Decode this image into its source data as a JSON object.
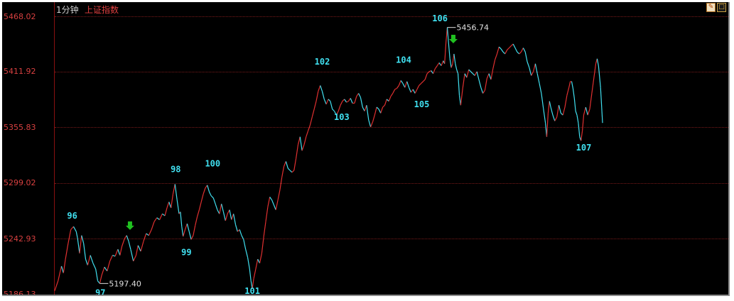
{
  "header": {
    "period": "1分钟",
    "index_name": "上证指数",
    "tools": [
      {
        "icon": "tool-icon",
        "glyph": "✎"
      },
      {
        "icon": "minimize-icon",
        "glyph": "□"
      }
    ]
  },
  "colors": {
    "up_line": "#e03030",
    "down_line": "#40e0f0",
    "axis_text": "#d84040",
    "wave_label": "#40e0f0",
    "arrow": "#20c020"
  },
  "y_axis": {
    "ticks": [
      "5468.02",
      "5411.92",
      "5355.83",
      "5299.02",
      "5242.93",
      "5186.13"
    ]
  },
  "chart_data": {
    "type": "line",
    "y_range": [
      5186.13,
      5468.02
    ],
    "x_range": [
      0,
      1000
    ],
    "series": [
      {
        "points": [
          [
            0,
            5190
          ],
          [
            5,
            5200
          ],
          [
            10,
            5215
          ],
          [
            13,
            5208
          ],
          [
            16,
            5222
          ],
          [
            20,
            5238
          ],
          [
            24,
            5252
          ],
          [
            28,
            5255
          ],
          [
            32,
            5250
          ],
          [
            34,
            5243
          ],
          [
            37,
            5228
          ],
          [
            40,
            5246
          ],
          [
            43,
            5238
          ],
          [
            46,
            5222
          ],
          [
            49,
            5216
          ],
          [
            53,
            5226
          ],
          [
            57,
            5218
          ],
          [
            61,
            5212
          ],
          [
            64,
            5200
          ],
          [
            67,
            5197.4
          ],
          [
            70,
            5206
          ],
          [
            74,
            5214
          ],
          [
            78,
            5210
          ],
          [
            82,
            5220
          ],
          [
            86,
            5226
          ],
          [
            90,
            5225
          ],
          [
            94,
            5232
          ],
          [
            97,
            5226
          ],
          [
            100,
            5235
          ],
          [
            104,
            5243
          ],
          [
            107,
            5246
          ],
          [
            110,
            5240
          ],
          [
            113,
            5232
          ],
          [
            117,
            5220
          ],
          [
            121,
            5226
          ],
          [
            124,
            5236
          ],
          [
            128,
            5230
          ],
          [
            132,
            5240
          ],
          [
            136,
            5248
          ],
          [
            140,
            5246
          ],
          [
            144,
            5252
          ],
          [
            148,
            5260
          ],
          [
            152,
            5264
          ],
          [
            156,
            5262
          ],
          [
            160,
            5268
          ],
          [
            164,
            5266
          ],
          [
            167,
            5274
          ],
          [
            170,
            5280
          ],
          [
            173,
            5274
          ],
          [
            176,
            5288
          ],
          [
            179,
            5298
          ],
          [
            182,
            5282
          ],
          [
            185,
            5268
          ],
          [
            187,
            5270
          ],
          [
            189,
            5255
          ],
          [
            191,
            5245
          ],
          [
            194,
            5252
          ],
          [
            197,
            5258
          ],
          [
            200,
            5250
          ],
          [
            203,
            5242
          ],
          [
            206,
            5246
          ],
          [
            209,
            5256
          ],
          [
            212,
            5265
          ],
          [
            215,
            5272
          ],
          [
            218,
            5280
          ],
          [
            221,
            5288
          ],
          [
            224,
            5294
          ],
          [
            227,
            5297
          ],
          [
            230,
            5290
          ],
          [
            233,
            5286
          ],
          [
            236,
            5284
          ],
          [
            239,
            5278
          ],
          [
            242,
            5272
          ],
          [
            245,
            5268
          ],
          [
            248,
            5278
          ],
          [
            251,
            5270
          ],
          [
            254,
            5261
          ],
          [
            257,
            5268
          ],
          [
            260,
            5272
          ],
          [
            263,
            5262
          ],
          [
            266,
            5268
          ],
          [
            269,
            5257
          ],
          [
            272,
            5250
          ],
          [
            275,
            5252
          ],
          [
            278,
            5246
          ],
          [
            281,
            5242
          ],
          [
            284,
            5232
          ],
          [
            287,
            5224
          ],
          [
            290,
            5212
          ],
          [
            292,
            5200
          ],
          [
            294,
            5192
          ],
          [
            296,
            5202
          ],
          [
            299,
            5212
          ],
          [
            302,
            5222
          ],
          [
            305,
            5218
          ],
          [
            308,
            5228
          ],
          [
            311,
            5245
          ],
          [
            314,
            5260
          ],
          [
            317,
            5275
          ],
          [
            320,
            5285
          ],
          [
            323,
            5282
          ],
          [
            326,
            5277
          ],
          [
            329,
            5272
          ],
          [
            332,
            5282
          ],
          [
            335,
            5292
          ],
          [
            338,
            5305
          ],
          [
            341,
            5316
          ],
          [
            344,
            5321
          ],
          [
            347,
            5314
          ],
          [
            350,
            5312
          ],
          [
            353,
            5310
          ],
          [
            356,
            5312
          ],
          [
            359,
            5324
          ],
          [
            362,
            5338
          ],
          [
            365,
            5346
          ],
          [
            368,
            5332
          ],
          [
            371,
            5338
          ],
          [
            374,
            5346
          ],
          [
            377,
            5352
          ],
          [
            380,
            5358
          ],
          [
            383,
            5366
          ],
          [
            386,
            5374
          ],
          [
            389,
            5382
          ],
          [
            392,
            5392
          ],
          [
            395,
            5398
          ],
          [
            398,
            5392
          ],
          [
            401,
            5384
          ],
          [
            404,
            5379
          ],
          [
            407,
            5384
          ],
          [
            410,
            5382
          ],
          [
            413,
            5374
          ],
          [
            416,
            5372
          ],
          [
            419,
            5368
          ],
          [
            422,
            5372
          ],
          [
            425,
            5378
          ],
          [
            428,
            5382
          ],
          [
            431,
            5384
          ],
          [
            434,
            5381
          ],
          [
            437,
            5382
          ],
          [
            440,
            5385
          ],
          [
            443,
            5380
          ],
          [
            446,
            5380
          ],
          [
            449,
            5387
          ],
          [
            452,
            5390
          ],
          [
            455,
            5386
          ],
          [
            458,
            5376
          ],
          [
            461,
            5372
          ],
          [
            464,
            5378
          ],
          [
            467,
            5363
          ],
          [
            470,
            5356
          ],
          [
            473,
            5361
          ],
          [
            476,
            5368
          ],
          [
            479,
            5376
          ],
          [
            482,
            5374
          ],
          [
            485,
            5370
          ],
          [
            488,
            5376
          ],
          [
            491,
            5378
          ],
          [
            494,
            5384
          ],
          [
            497,
            5382
          ],
          [
            500,
            5387
          ],
          [
            503,
            5390
          ],
          [
            506,
            5394
          ],
          [
            509,
            5395
          ],
          [
            512,
            5398
          ],
          [
            515,
            5403
          ],
          [
            518,
            5400
          ],
          [
            521,
            5396
          ],
          [
            524,
            5402
          ],
          [
            527,
            5396
          ],
          [
            530,
            5391
          ],
          [
            533,
            5394
          ],
          [
            536,
            5390
          ],
          [
            539,
            5394
          ],
          [
            542,
            5398
          ],
          [
            545,
            5400
          ],
          [
            548,
            5402
          ],
          [
            551,
            5404
          ],
          [
            554,
            5410
          ],
          [
            557,
            5412
          ],
          [
            560,
            5413
          ],
          [
            563,
            5410
          ],
          [
            566,
            5415
          ],
          [
            569,
            5418
          ],
          [
            572,
            5421
          ],
          [
            575,
            5418
          ],
          [
            578,
            5423
          ],
          [
            580,
            5420
          ],
          [
            582,
            5441
          ],
          [
            584,
            5456.74
          ],
          [
            586,
            5440
          ],
          [
            588,
            5425
          ],
          [
            590,
            5416
          ],
          [
            592,
            5420
          ],
          [
            594,
            5430
          ],
          [
            596,
            5420
          ],
          [
            598,
            5414
          ],
          [
            600,
            5410
          ],
          [
            602,
            5388
          ],
          [
            604,
            5378
          ],
          [
            607,
            5395
          ],
          [
            610,
            5410
          ],
          [
            613,
            5406
          ],
          [
            616,
            5414
          ],
          [
            619,
            5412
          ],
          [
            622,
            5410
          ],
          [
            625,
            5408
          ],
          [
            628,
            5412
          ],
          [
            631,
            5404
          ],
          [
            634,
            5396
          ],
          [
            637,
            5390
          ],
          [
            640,
            5393
          ],
          [
            643,
            5405
          ],
          [
            646,
            5410
          ],
          [
            649,
            5404
          ],
          [
            652,
            5415
          ],
          [
            655,
            5424
          ],
          [
            658,
            5430
          ],
          [
            661,
            5437
          ],
          [
            664,
            5435
          ],
          [
            667,
            5432
          ],
          [
            670,
            5430
          ],
          [
            673,
            5434
          ],
          [
            676,
            5436
          ],
          [
            679,
            5438
          ],
          [
            682,
            5440
          ],
          [
            685,
            5436
          ],
          [
            688,
            5432
          ],
          [
            691,
            5430
          ],
          [
            694,
            5432
          ],
          [
            697,
            5436
          ],
          [
            700,
            5432
          ],
          [
            703,
            5422
          ],
          [
            706,
            5416
          ],
          [
            709,
            5408
          ],
          [
            712,
            5412
          ],
          [
            715,
            5420
          ],
          [
            718,
            5410
          ],
          [
            721,
            5400
          ],
          [
            724,
            5390
          ],
          [
            727,
            5375
          ],
          [
            730,
            5360
          ],
          [
            732,
            5346
          ],
          [
            734,
            5370
          ],
          [
            736,
            5382
          ],
          [
            738,
            5376
          ],
          [
            741,
            5368
          ],
          [
            744,
            5362
          ],
          [
            747,
            5366
          ],
          [
            750,
            5378
          ],
          [
            753,
            5370
          ],
          [
            756,
            5368
          ],
          [
            759,
            5376
          ],
          [
            762,
            5388
          ],
          [
            765,
            5396
          ],
          [
            767,
            5402
          ],
          [
            769,
            5402
          ],
          [
            771,
            5395
          ],
          [
            773,
            5385
          ],
          [
            775,
            5372
          ],
          [
            777,
            5368
          ],
          [
            779,
            5360
          ],
          [
            781,
            5346
          ],
          [
            783,
            5342
          ],
          [
            785,
            5352
          ],
          [
            787,
            5368
          ],
          [
            790,
            5376
          ],
          [
            793,
            5368
          ],
          [
            796,
            5374
          ],
          [
            799,
            5390
          ],
          [
            802,
            5405
          ],
          [
            805,
            5420
          ],
          [
            807,
            5425
          ],
          [
            809,
            5418
          ],
          [
            812,
            5396
          ],
          [
            815,
            5360
          ]
        ]
      }
    ],
    "price_marks": [
      {
        "x": 67,
        "y": 5197.4,
        "text": "5197.40"
      },
      {
        "x": 584,
        "y": 5456.74,
        "text": "5456.74"
      }
    ],
    "wave_labels": [
      {
        "text": "96",
        "x": 26,
        "y": 5263
      },
      {
        "text": "97",
        "x": 68,
        "y": 5185
      },
      {
        "text": "98",
        "x": 180,
        "y": 5310
      },
      {
        "text": "99",
        "x": 196,
        "y": 5226
      },
      {
        "text": "100",
        "x": 235,
        "y": 5316
      },
      {
        "text": "101",
        "x": 294,
        "y": 5187
      },
      {
        "text": "102",
        "x": 398,
        "y": 5419
      },
      {
        "text": "103",
        "x": 427,
        "y": 5363
      },
      {
        "text": "104",
        "x": 519,
        "y": 5421
      },
      {
        "text": "105",
        "x": 546,
        "y": 5376
      },
      {
        "text": "106",
        "x": 573,
        "y": 5463
      },
      {
        "text": "107",
        "x": 787,
        "y": 5332
      }
    ],
    "arrows": [
      {
        "x": 112,
        "y": 5256,
        "direction": "down"
      },
      {
        "x": 593,
        "y": 5445,
        "direction": "down"
      }
    ]
  }
}
